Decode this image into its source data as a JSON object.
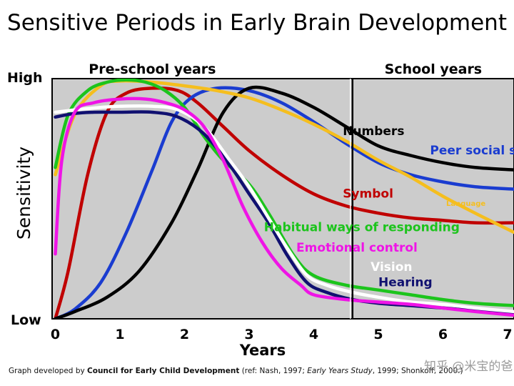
{
  "page": {
    "title": "Sensitive Periods in Early Brain Development",
    "footer": {
      "prefix": "Graph developed by ",
      "org": "Council for Early Child Development",
      "ref_open": " (ref: Nash, 1997; ",
      "study": "Early Years Study",
      "ref_close": ", 1999; Shonkoff, 2000.)"
    },
    "watermark": "知乎 @米宝的爸"
  },
  "chart_data": {
    "type": "line",
    "title": "Sensitive Periods in Early Brain Development",
    "xlabel": "Years",
    "ylabel": "Sensitivity",
    "y_high_label": "High",
    "y_low_label": "Low",
    "xlim": [
      -0.05,
      7.1
    ],
    "ylim": [
      0,
      1
    ],
    "xticks": [
      0,
      1,
      2,
      3,
      4,
      5,
      6,
      7
    ],
    "background_color": "#cccccc",
    "grid": false,
    "regions": [
      {
        "label": "Pre-school years",
        "from": -0.05,
        "to": 4.6
      },
      {
        "label": "School years",
        "from": 4.6,
        "to": 7.1
      }
    ],
    "series": [
      {
        "name": "Numbers",
        "color": "#000000",
        "label_at": [
          4.45,
          0.765
        ],
        "x": [
          0,
          0.3,
          0.8,
          1.3,
          1.8,
          2.2,
          2.6,
          3.0,
          3.5,
          4.0,
          4.5,
          5.0,
          5.5,
          6.0,
          6.5,
          7.1
        ],
        "y": [
          0,
          0.03,
          0.09,
          0.2,
          0.4,
          0.62,
          0.86,
          0.96,
          0.94,
          0.88,
          0.8,
          0.72,
          0.68,
          0.65,
          0.63,
          0.62
        ]
      },
      {
        "name": "Peer social skills",
        "color": "#1a3cd0",
        "label_at": [
          5.8,
          0.685
        ],
        "x": [
          0,
          0.3,
          0.7,
          1.1,
          1.5,
          1.8,
          2.1,
          2.5,
          3.0,
          3.5,
          4.0,
          4.5,
          5.0,
          5.5,
          6.0,
          6.5,
          7.1
        ],
        "y": [
          0,
          0.04,
          0.15,
          0.36,
          0.62,
          0.82,
          0.92,
          0.96,
          0.95,
          0.9,
          0.82,
          0.73,
          0.65,
          0.6,
          0.57,
          0.55,
          0.54
        ]
      },
      {
        "name": "Symbol",
        "color": "#c00000",
        "label_at": [
          4.45,
          0.505
        ],
        "x": [
          0,
          0.2,
          0.5,
          0.8,
          1.1,
          1.5,
          1.9,
          2.2,
          2.6,
          3.0,
          3.5,
          4.0,
          4.5,
          5.0,
          5.5,
          6.0,
          6.5,
          7.1
        ],
        "y": [
          0,
          0.2,
          0.6,
          0.86,
          0.94,
          0.96,
          0.95,
          0.9,
          0.8,
          0.7,
          0.6,
          0.52,
          0.47,
          0.44,
          0.42,
          0.41,
          0.4,
          0.4
        ]
      },
      {
        "name": "Language",
        "color": "#f5be1e",
        "label_at": [
          6.05,
          0.47
        ],
        "x": [
          0,
          0.3,
          0.7,
          1.0,
          1.5,
          2.0,
          2.5,
          3.0,
          3.5,
          4.0,
          4.5,
          5.0,
          5.5,
          6.0,
          6.5,
          7.1
        ],
        "y": [
          0.6,
          0.85,
          0.97,
          0.99,
          0.985,
          0.97,
          0.95,
          0.92,
          0.87,
          0.81,
          0.74,
          0.66,
          0.59,
          0.51,
          0.44,
          0.36
        ]
      },
      {
        "name": "Habitual ways of responding",
        "color": "#1cc41c",
        "label_at": [
          3.23,
          0.365
        ],
        "x": [
          0,
          0.2,
          0.5,
          0.8,
          1.1,
          1.4,
          1.7,
          2.0,
          2.3,
          2.6,
          3.0,
          3.3,
          3.7,
          4.0,
          4.5,
          5.0,
          5.5,
          6.0,
          6.5,
          7.1
        ],
        "y": [
          0.63,
          0.85,
          0.95,
          0.985,
          0.995,
          0.985,
          0.95,
          0.88,
          0.76,
          0.66,
          0.56,
          0.44,
          0.26,
          0.18,
          0.14,
          0.12,
          0.1,
          0.08,
          0.065,
          0.055
        ]
      },
      {
        "name": "Emotional control",
        "color": "#ef14e6",
        "label_at": [
          3.73,
          0.28
        ],
        "x": [
          0,
          0.1,
          0.3,
          0.6,
          1.0,
          1.4,
          1.7,
          2.0,
          2.3,
          2.6,
          2.9,
          3.2,
          3.5,
          3.8,
          4.0,
          4.5,
          5.0,
          5.5,
          6.0,
          6.5,
          7.1
        ],
        "y": [
          0.27,
          0.66,
          0.86,
          0.9,
          0.915,
          0.915,
          0.9,
          0.87,
          0.8,
          0.66,
          0.47,
          0.32,
          0.21,
          0.14,
          0.1,
          0.08,
          0.07,
          0.06,
          0.045,
          0.03,
          0.015
        ]
      },
      {
        "name": "Vision",
        "color": "#ffffff",
        "label_at": [
          4.88,
          0.2
        ],
        "x": [
          0,
          0.3,
          0.7,
          1.0,
          1.5,
          1.9,
          2.3,
          2.7,
          3.0,
          3.3,
          3.6,
          3.9,
          4.2,
          4.6,
          5.0,
          5.5,
          6.0,
          6.5,
          7.1
        ],
        "y": [
          0.86,
          0.87,
          0.88,
          0.885,
          0.885,
          0.87,
          0.8,
          0.66,
          0.55,
          0.42,
          0.29,
          0.18,
          0.14,
          0.11,
          0.09,
          0.07,
          0.06,
          0.045,
          0.03
        ]
      },
      {
        "name": "Hearing",
        "color": "#101070",
        "label_at": [
          5.0,
          0.135
        ],
        "x": [
          0,
          0.3,
          0.6,
          1.0,
          1.5,
          1.9,
          2.3,
          2.7,
          3.0,
          3.3,
          3.6,
          3.9,
          4.2,
          4.6,
          5.0,
          5.5,
          6.0,
          6.5,
          7.1
        ],
        "y": [
          0.84,
          0.855,
          0.86,
          0.86,
          0.86,
          0.84,
          0.77,
          0.64,
          0.52,
          0.4,
          0.26,
          0.15,
          0.11,
          0.08,
          0.065,
          0.055,
          0.045,
          0.035,
          0.025
        ]
      }
    ]
  }
}
